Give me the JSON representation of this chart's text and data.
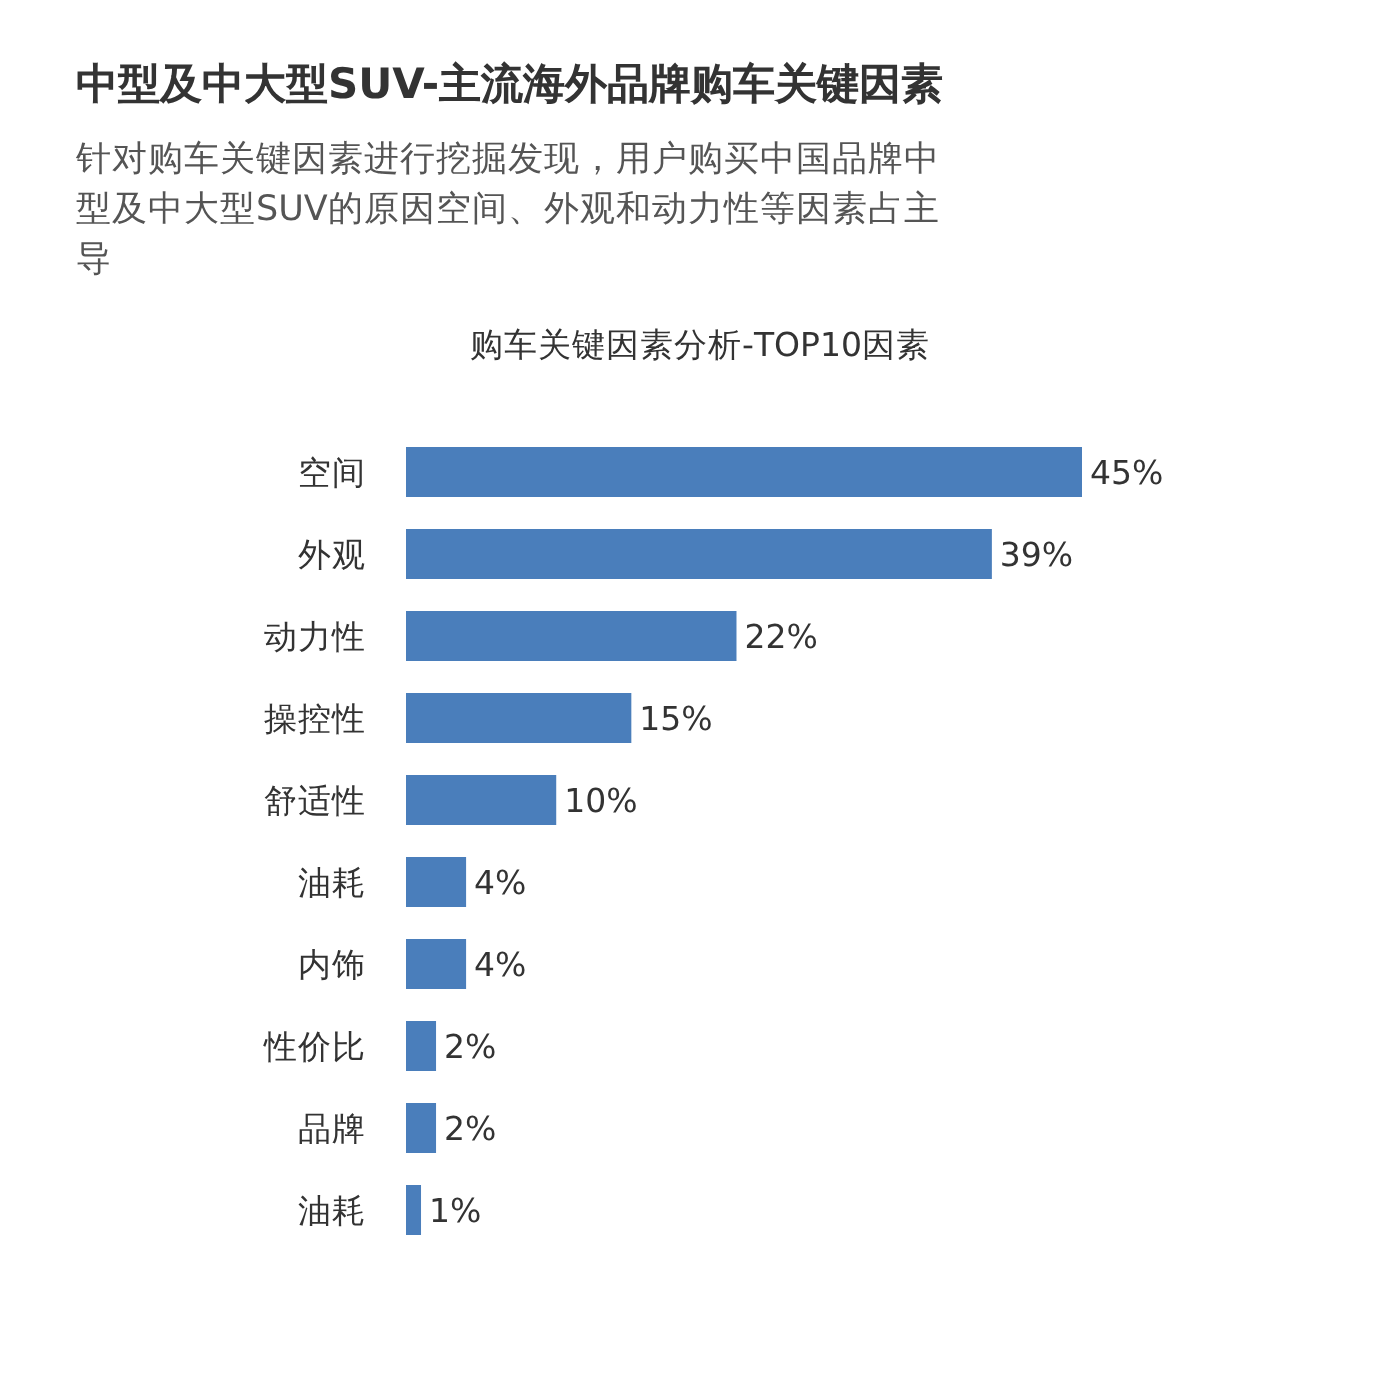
{
  "chart_data": {
    "type": "bar",
    "orientation": "horizontal",
    "title": "中型及中大型SUV-主流海外品牌购车关键因素",
    "subtitle": "针对购车关键因素进行挖掘发现，用户购买中国品牌中型及中大型SUV的原因空间、外观和动力性等因素占主导",
    "annotations": [
      "购车关键因素分析-TOP10因素"
    ],
    "categories": [
      "空间",
      "外观",
      "动力性",
      "操控性",
      "舒适性",
      "油耗",
      "内饰",
      "性价比",
      "品牌",
      "油耗"
    ],
    "values": [
      45,
      39,
      22,
      15,
      10,
      4,
      4,
      2,
      2,
      1
    ],
    "value_labels": [
      "45%",
      "39%",
      "22%",
      "15%",
      "10%",
      "4%",
      "4%",
      "2%",
      "2%",
      "1%"
    ],
    "color": "#4a7ebb"
  }
}
